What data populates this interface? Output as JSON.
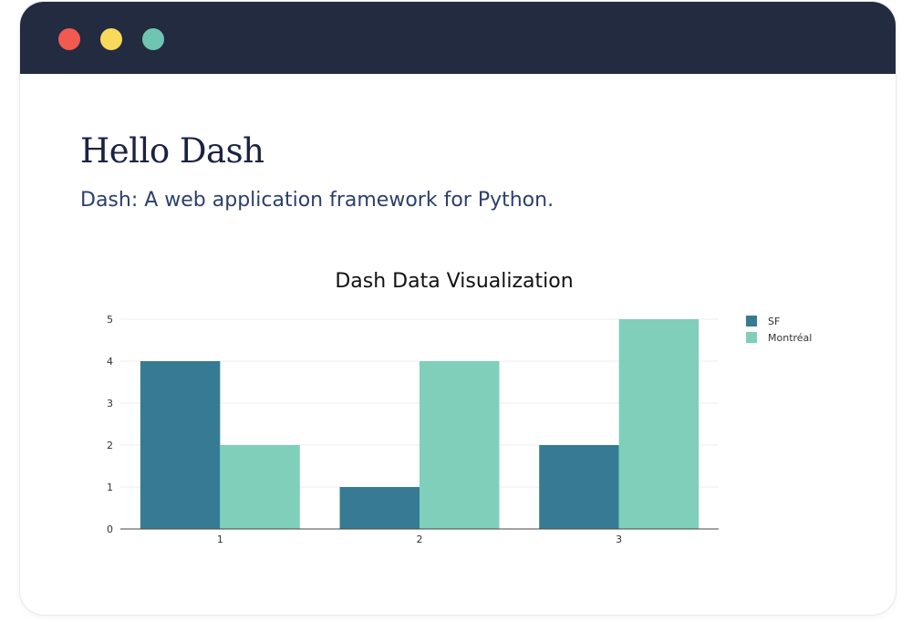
{
  "window": {
    "controls": [
      {
        "name": "close-dot",
        "color": "#f05a4f"
      },
      {
        "name": "minimize-dot",
        "color": "#f9d95c"
      },
      {
        "name": "maximize-dot",
        "color": "#6ec5b1"
      }
    ],
    "titlebar_color": "#232b40"
  },
  "page": {
    "title": "Hello Dash",
    "subtitle": "Dash: A web application framework for Python."
  },
  "chart_data": {
    "type": "bar",
    "title": "Dash Data Visualization",
    "categories": [
      "1",
      "2",
      "3"
    ],
    "series": [
      {
        "name": "SF",
        "values": [
          4,
          1,
          2
        ],
        "color": "#367b93"
      },
      {
        "name": "Montréal",
        "values": [
          2,
          4,
          5
        ],
        "color": "#7fcfbb"
      }
    ],
    "yticks": [
      "0",
      "1",
      "2",
      "3",
      "4",
      "5"
    ],
    "ylim": [
      0,
      5
    ],
    "xlabel": "",
    "ylabel": "",
    "grid": true,
    "legend": "top-right"
  }
}
